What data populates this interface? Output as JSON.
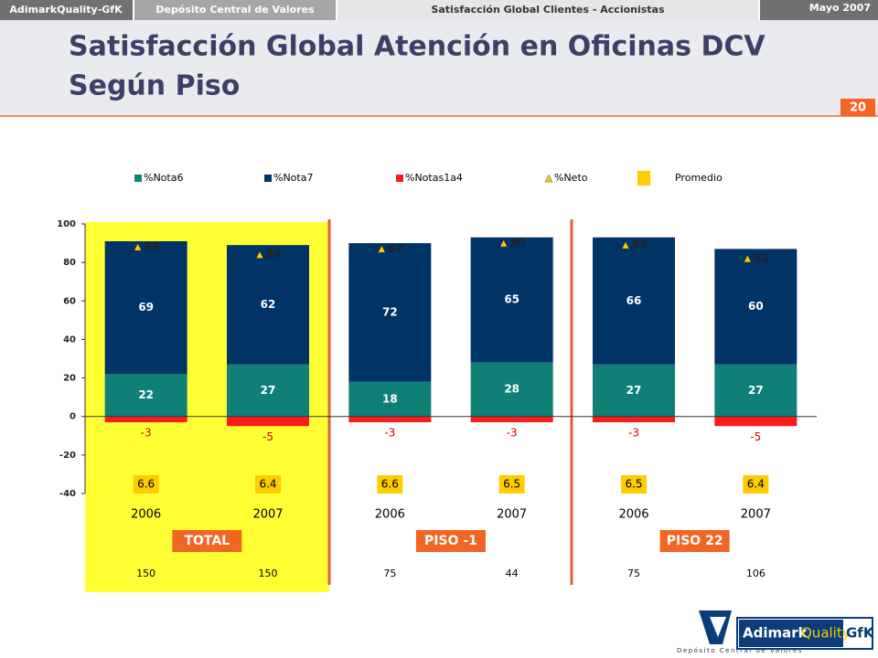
{
  "header": {
    "brand": "AdimarkQuality-GfK",
    "client": "Depósito Central de Valores",
    "study": "Satisfacción Global Clientes - Accionistas",
    "date": "Mayo 2007",
    "title_lines": [
      "Satisfacción Global Atención en Oficinas DCV",
      "Según Piso"
    ],
    "page_number": "20"
  },
  "chart_data": {
    "type": "stacked_bar",
    "categories": [
      "2006",
      "2007",
      "2006",
      "2007",
      "2006",
      "2007"
    ],
    "series": [
      {
        "name": "%Nota6",
        "color": "#0e8078",
        "values": [
          22,
          27,
          18,
          28,
          27,
          27
        ]
      },
      {
        "name": "%Nota7",
        "color": "#003366",
        "values": [
          69,
          62,
          72,
          65,
          66,
          60
        ]
      },
      {
        "name": "%Notas1a4",
        "color": "#ff1a1a",
        "values": [
          -3,
          -5,
          -3,
          -3,
          -3,
          -5
        ]
      }
    ],
    "neto": {
      "name": "%Neto",
      "color": "#ffcc00",
      "values": [
        88,
        84,
        87,
        90,
        89,
        82
      ]
    },
    "promedio": {
      "name": "Promedio",
      "color": "#ffcc00",
      "values": [
        6.6,
        6.4,
        6.6,
        6.5,
        6.5,
        6.4
      ]
    },
    "groups": [
      "TOTAL",
      "PISO -1",
      "PISO 22"
    ],
    "bases": [
      150,
      150,
      75,
      44,
      75,
      106
    ],
    "ylim": [
      -40,
      100
    ],
    "yticks": [
      -40,
      -20,
      0,
      20,
      40,
      60,
      80,
      100
    ]
  },
  "logos": {
    "dcv": "Depósito Central de Valores",
    "adimark": [
      "Adimark",
      "Quality",
      "GfK"
    ]
  }
}
